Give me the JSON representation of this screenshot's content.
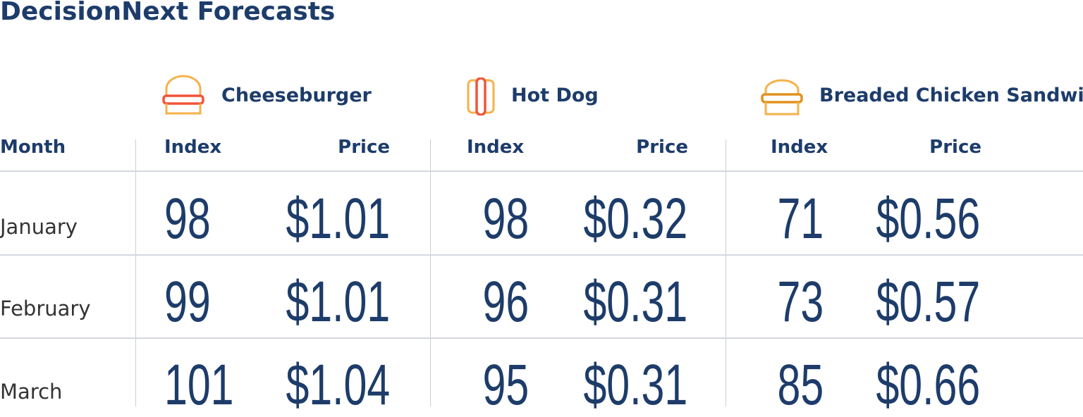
{
  "title": "DecisionNext Forecasts",
  "products": [
    {
      "name": "Cheeseburger",
      "icon": "cheeseburger-icon"
    },
    {
      "name": "Hot Dog",
      "icon": "hot-dog-icon"
    },
    {
      "name": "Breaded Chicken Sandwich",
      "icon": "chicken-sandwich-icon"
    }
  ],
  "headers": {
    "month": "Month",
    "index": "Index",
    "price": "Price"
  },
  "rows": [
    {
      "month": "January",
      "values": [
        [
          "98",
          "$1.01"
        ],
        [
          "98",
          "$0.32"
        ],
        [
          "71",
          "$0.56"
        ]
      ]
    },
    {
      "month": "February",
      "values": [
        [
          "99",
          "$1.01"
        ],
        [
          "96",
          "$0.31"
        ],
        [
          "73",
          "$0.57"
        ]
      ]
    },
    {
      "month": "March",
      "values": [
        [
          "101",
          "$1.04"
        ],
        [
          "95",
          "$0.31"
        ],
        [
          "85",
          "$0.66"
        ]
      ]
    }
  ],
  "colors": {
    "text": "#1d3c6a",
    "icon_orange": "#f5a623",
    "icon_red": "#f0553a",
    "icon_dark_orange": "#e0921e"
  }
}
